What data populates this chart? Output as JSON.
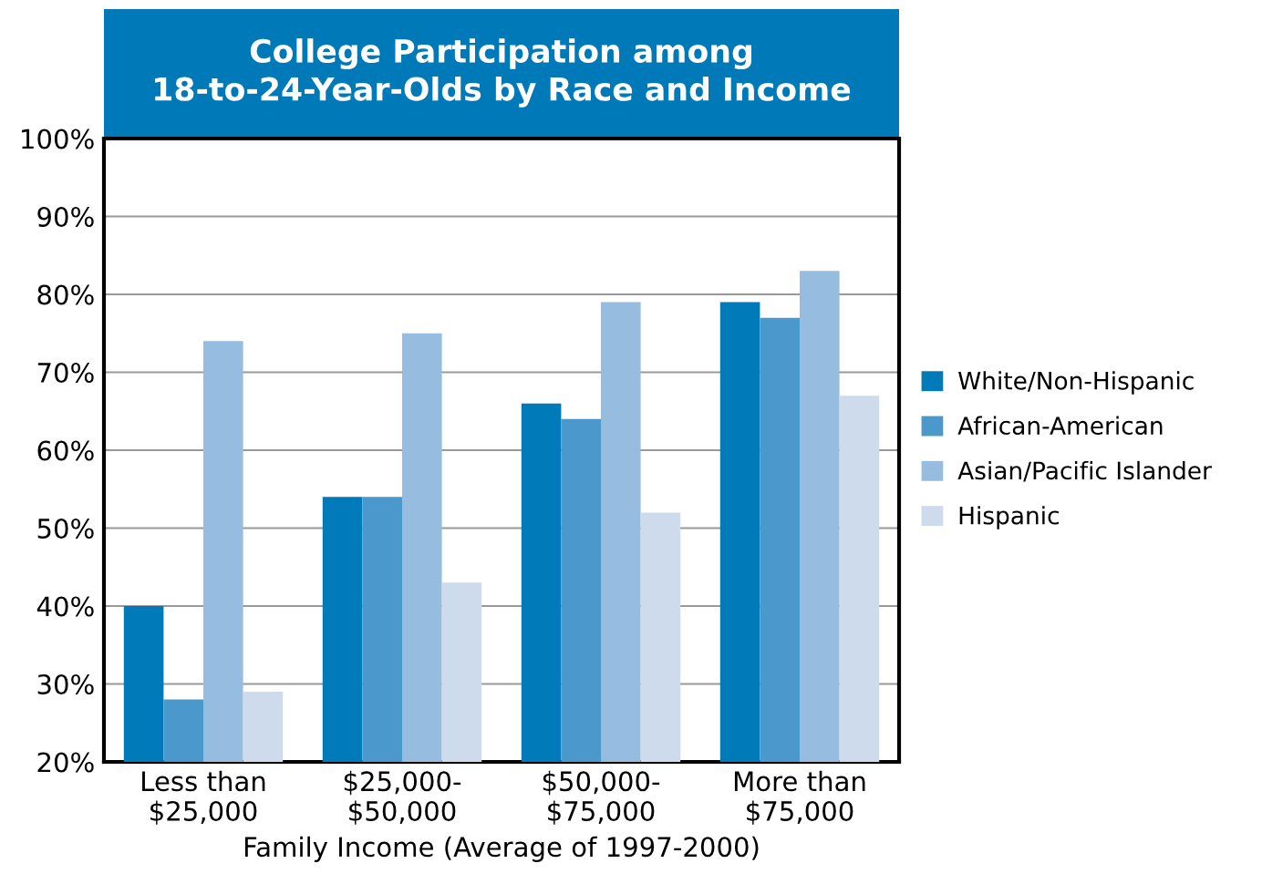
{
  "chart_data": {
    "type": "bar",
    "title": "College Participation among\n18-to-24-Year-Olds by Race and Income",
    "xlabel": "Family Income (Average of 1997-2000)",
    "categories": [
      "Less than\n$25,000",
      "$25,000-\n$50,000",
      "$50,000-\n$75,000",
      "More than\n$75,000"
    ],
    "series": [
      {
        "name": "White/Non-Hispanic",
        "color": "#007ab8",
        "values": [
          40,
          54,
          66,
          79
        ]
      },
      {
        "name": "African-American",
        "color": "#4b99cc",
        "values": [
          28,
          54,
          64,
          77
        ]
      },
      {
        "name": "Asian/Pacific Islander",
        "color": "#96bce0",
        "values": [
          74,
          75,
          79,
          83
        ]
      },
      {
        "name": "Hispanic",
        "color": "#cedbec",
        "values": [
          29,
          43,
          52,
          67
        ]
      }
    ],
    "ylim": [
      20,
      100
    ],
    "yticks": [
      {
        "value": 20,
        "label": "20%"
      },
      {
        "value": 30,
        "label": "30%"
      },
      {
        "value": 40,
        "label": "40%"
      },
      {
        "value": 50,
        "label": "50%"
      },
      {
        "value": 60,
        "label": "60%"
      },
      {
        "value": 70,
        "label": "70%"
      },
      {
        "value": 80,
        "label": "80%"
      },
      {
        "value": 90,
        "label": "90%"
      },
      {
        "value": 100,
        "label": "100%"
      }
    ],
    "grid": "y",
    "legend": "right"
  }
}
